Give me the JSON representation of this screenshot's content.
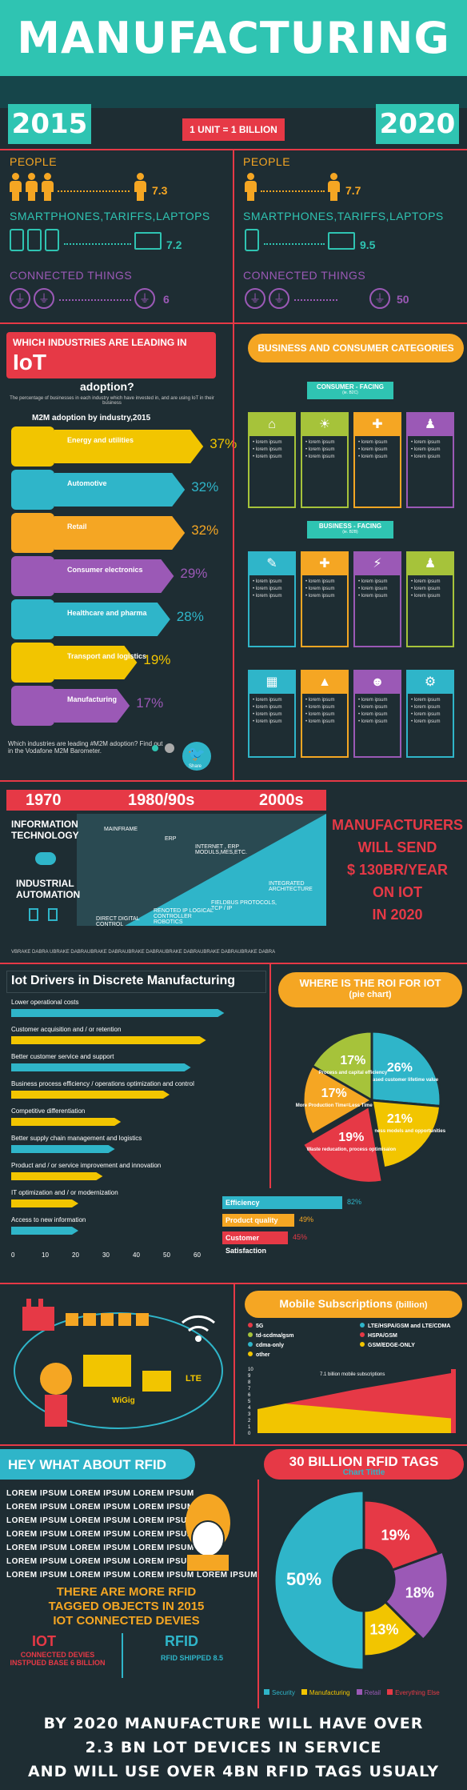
{
  "header": {
    "title": "MANUFACTURING"
  },
  "compare": {
    "unit_label": "1 UNIT = 1 BILLION",
    "left": {
      "year": "2015",
      "people_label": "PEOPLE",
      "people_value": "7.3",
      "devices_label": "SMARTPHONES,TARIFFS,LAPTOPS",
      "devices_value": "7.2",
      "things_label": "CONNECTED THINGS",
      "things_value": "6"
    },
    "right": {
      "year": "2020",
      "people_label": "PEOPLE",
      "people_value": "7.7",
      "devices_label": "SMARTPHONES,TARIFFS,LAPTOPS",
      "devices_value": "9.5",
      "things_label": "CONNECTED THINGS",
      "things_value": "50"
    }
  },
  "industries": {
    "title_line1": "WHICH INDUSTRIES ARE LEADING IN",
    "title_iot": "IoT",
    "title_line2": "adoption?",
    "desc": "The percentage of businesses in each industry which have invested in, and are using IoT in their business",
    "subtitle": "M2M adoption by industry,2015",
    "items": [
      {
        "name": "Energy and utilities",
        "value": "37%",
        "color": "#f2c500",
        "pct": 37
      },
      {
        "name": "Automotive",
        "value": "32%",
        "color": "#2fb5c9",
        "pct": 32
      },
      {
        "name": "Retail",
        "value": "32%",
        "color": "#f5a623",
        "pct": 32
      },
      {
        "name": "Consumer electronics",
        "value": "29%",
        "color": "#9b59b6",
        "pct": 29
      },
      {
        "name": "Healthcare and pharma",
        "value": "28%",
        "color": "#2fb5c9",
        "pct": 28
      },
      {
        "name": "Transport and logistics",
        "value": "19%",
        "color": "#f2c500",
        "pct": 19
      },
      {
        "name": "Manufacturing",
        "value": "17%",
        "color": "#9b59b6",
        "pct": 17
      }
    ],
    "footnote": "Which industries are leading #M2M adoption? Find out in the Vodafone M2M Barometer.",
    "share": "Share"
  },
  "categories": {
    "title": "BUSINESS AND CONSUMER CATEGORIES",
    "consumer": "CONSUMER - FACING",
    "consumer_sub": "(ie. B2C)",
    "business": "BUSINESS - FACING",
    "business_sub": "(ie. B2B)",
    "item": "• lorem ipsum"
  },
  "timeline": {
    "y1": "1970",
    "y2": "1980/90s",
    "y3": "2000s",
    "it": "INFORMATION TECHNOLOGY",
    "ia": "INDUSTRIAL AUTOMATION",
    "mainframe": "MAINFRAME",
    "erp": "ERP",
    "internet": "INTERNET , ERP MODULS,MES,ETC.",
    "integrated": "INTEGRATED ARCHITECTURE",
    "fieldbus": "FIELDBUS PROTOCOLS, TCP / IP",
    "remoted": "RENOTED IP LOGICAL CONTROLLER ROBOTICS",
    "direct": "DIRECT DIGITAL CONTROL",
    "brand": "VBRAKE DABRA UBRAKE DABRAUBRAKE DABRAUBRAKE DABRAUBRAKE DABRAUBRAKE DABRAUBRAKE DABRA",
    "claim": [
      "MANUFACTURERS",
      "WILL SEND",
      "$ 130BR/YEAR",
      "ON IOT",
      "IN 2020"
    ]
  },
  "drivers": {
    "title": "Iot Drivers in Discrete Manufacturing",
    "items": [
      {
        "name": "Lower operational costs",
        "value": 68,
        "color": "#2fb5c9"
      },
      {
        "name": "Customer acquisition and / or retention",
        "value": 62,
        "color": "#f2c500"
      },
      {
        "name": "Better customer service and support",
        "value": 57,
        "color": "#2fb5c9"
      },
      {
        "name": "Business process efficiency / operations optimization and control",
        "value": 50,
        "color": "#f2c500"
      },
      {
        "name": "Competitive differentiation",
        "value": 34,
        "color": "#f2c500"
      },
      {
        "name": "Better supply chain management and logistics",
        "value": 32,
        "color": "#2fb5c9"
      },
      {
        "name": "Product and / or service improvement and innovation",
        "value": 28,
        "color": "#f2c500"
      },
      {
        "name": "IT optimization and / or modernization",
        "value": 20,
        "color": "#f2c500"
      },
      {
        "name": "Access to new information",
        "value": 20,
        "color": "#2fb5c9"
      }
    ],
    "ticks": [
      "0",
      "10",
      "20",
      "30",
      "40",
      "50",
      "60"
    ]
  },
  "roi": {
    "title": "WHERE IS THE ROI FOR IOT",
    "sub": "(pie chart)",
    "slices": [
      {
        "value": "26%",
        "label": "Increased customer lifetime value",
        "color": "#2fb5c9"
      },
      {
        "value": "21%",
        "label": "new business models and opportunities",
        "color": "#f2c500"
      },
      {
        "value": "19%",
        "label": "Waste reducation, process optimisaion",
        "color": "#e63946"
      },
      {
        "value": "17%",
        "label": "More Production Time=Less Time",
        "color": "#f5a623"
      },
      {
        "value": "17%",
        "label": "Process and capital efficiency",
        "color": "#a6c33a"
      }
    ],
    "metrics": [
      {
        "name": "Efficiency",
        "value": "82%",
        "color": "#2fb5c9"
      },
      {
        "name": "Product quality",
        "value": "49%",
        "color": "#f5a623"
      },
      {
        "name": "Customer Satisfaction",
        "value": "45%",
        "color": "#e63946"
      }
    ]
  },
  "factory": {
    "lte": "LTE",
    "wigig": "WiGig"
  },
  "mobile": {
    "title": "Mobile Subscriptions",
    "title_unit": "(billion)",
    "legend": [
      {
        "name": "5G",
        "color": "#e63946"
      },
      {
        "name": "LTE/HSPA/GSM and LTE/CDMA",
        "color": "#2fb5c9"
      },
      {
        "name": "td-scdma/gsm",
        "color": "#a6c33a"
      },
      {
        "name": "HSPA/GSM",
        "color": "#e63946"
      },
      {
        "name": "cdma-only",
        "color": "#2fb5c9"
      },
      {
        "name": "GSM/EDGE-ONLY",
        "color": "#f2c500"
      },
      {
        "name": "other",
        "color": "#f2c500"
      }
    ],
    "note1": "7.1 billion mobile subscriptions",
    "note2": "9.5 billion mobile subscriptions",
    "yticks": [
      "0",
      "1",
      "2",
      "3",
      "4",
      "5",
      "6",
      "7",
      "8",
      "9",
      "10"
    ]
  },
  "rfid": {
    "title": "HEY WHAT ABOUT RFID",
    "lorem": "LOREM IPSUM  LOREM IPSUM  LOREM IPSUM",
    "lorem_last": "LOREM IPSUM  LOREM IPSUM  LOREM IPSUM  LOREM IPSUM",
    "more_line1": "THERE ARE MORE RFID",
    "more_line2": "TAGGED OBJECTS IN 2015",
    "more_line3": "IOT CONNECTED DEVIES",
    "iot": "IOT",
    "iot_sub": "CONNECTED DEVIES INSTPUED BASE 6 BILLION",
    "rfid": "RFID",
    "rfid_sub": "RFID SHIPPED 8.5"
  },
  "tags": {
    "title": "30 BILLION RFID TAGS",
    "sub": "Chart Tittle",
    "slices": [
      {
        "name": "Security",
        "value": "50%",
        "color": "#2fb5c9",
        "pct": 50
      },
      {
        "name": "Manufacturing",
        "value": "13%",
        "color": "#f2c500",
        "pct": 13
      },
      {
        "name": "Retail",
        "value": "18%",
        "color": "#9b59b6",
        "pct": 18
      },
      {
        "name": "Everything Else",
        "value": "19%",
        "color": "#e63946",
        "pct": 19
      }
    ]
  },
  "footer": {
    "line1": "BY 2020 MANUFACTURE WILL HAVE OVER",
    "line2": "2.3 BN  LOT DEVICES IN SERVICE",
    "line3": "AND WILL USE OVER 4BN RFID TAGS USUALY"
  }
}
